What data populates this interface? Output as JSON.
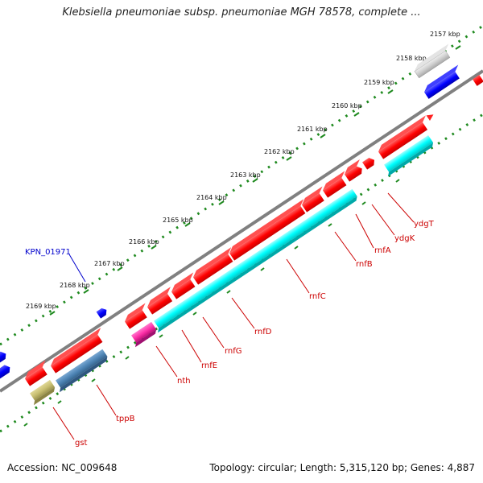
{
  "title": "Klebsiella pneumoniae subsp. pneumoniae MGH 78578, complete ...",
  "ticks": [
    {
      "label": "2157 kbp"
    },
    {
      "label": "2158 kbp"
    },
    {
      "label": "2159 kbp"
    },
    {
      "label": "2160 kbp"
    },
    {
      "label": "2161 kbp"
    },
    {
      "label": "2162 kbp"
    },
    {
      "label": "2163 kbp"
    },
    {
      "label": "2164 kbp"
    },
    {
      "label": "2165 kbp"
    },
    {
      "label": "2166 kbp"
    },
    {
      "label": "2167 kbp"
    },
    {
      "label": "2168 kbp"
    },
    {
      "label": "2169 kbp"
    }
  ],
  "gene_labels": {
    "kpn": "KPN_01971",
    "ydgT": "ydgT",
    "ydgK": "ydgK",
    "rnfA": "rnfA",
    "rnfB": "rnfB",
    "rnfC": "rnfC",
    "rnfD": "rnfD",
    "rnfG": "rnfG",
    "rnfE": "rnfE",
    "nth": "nth",
    "tppB": "tppB",
    "gst": "gst"
  },
  "colors": {
    "cds": "#ff0000",
    "cds_dark": "#b00000",
    "cyan": "#00ffff",
    "magenta": "#ff33aa",
    "steelblue": "#4f86b6",
    "khaki": "#c8bf72",
    "blue": "#0000ff",
    "grey": "#cfcfcf",
    "backbone": "#808080",
    "dots": "#1f8a1f",
    "label_red": "#cc0000",
    "label_blue": "#0000cc"
  },
  "footer": {
    "accession": "Accession: NC_009648",
    "topology": "Topology: circular; Length: 5,315,120 bp; Genes: 4,887"
  }
}
